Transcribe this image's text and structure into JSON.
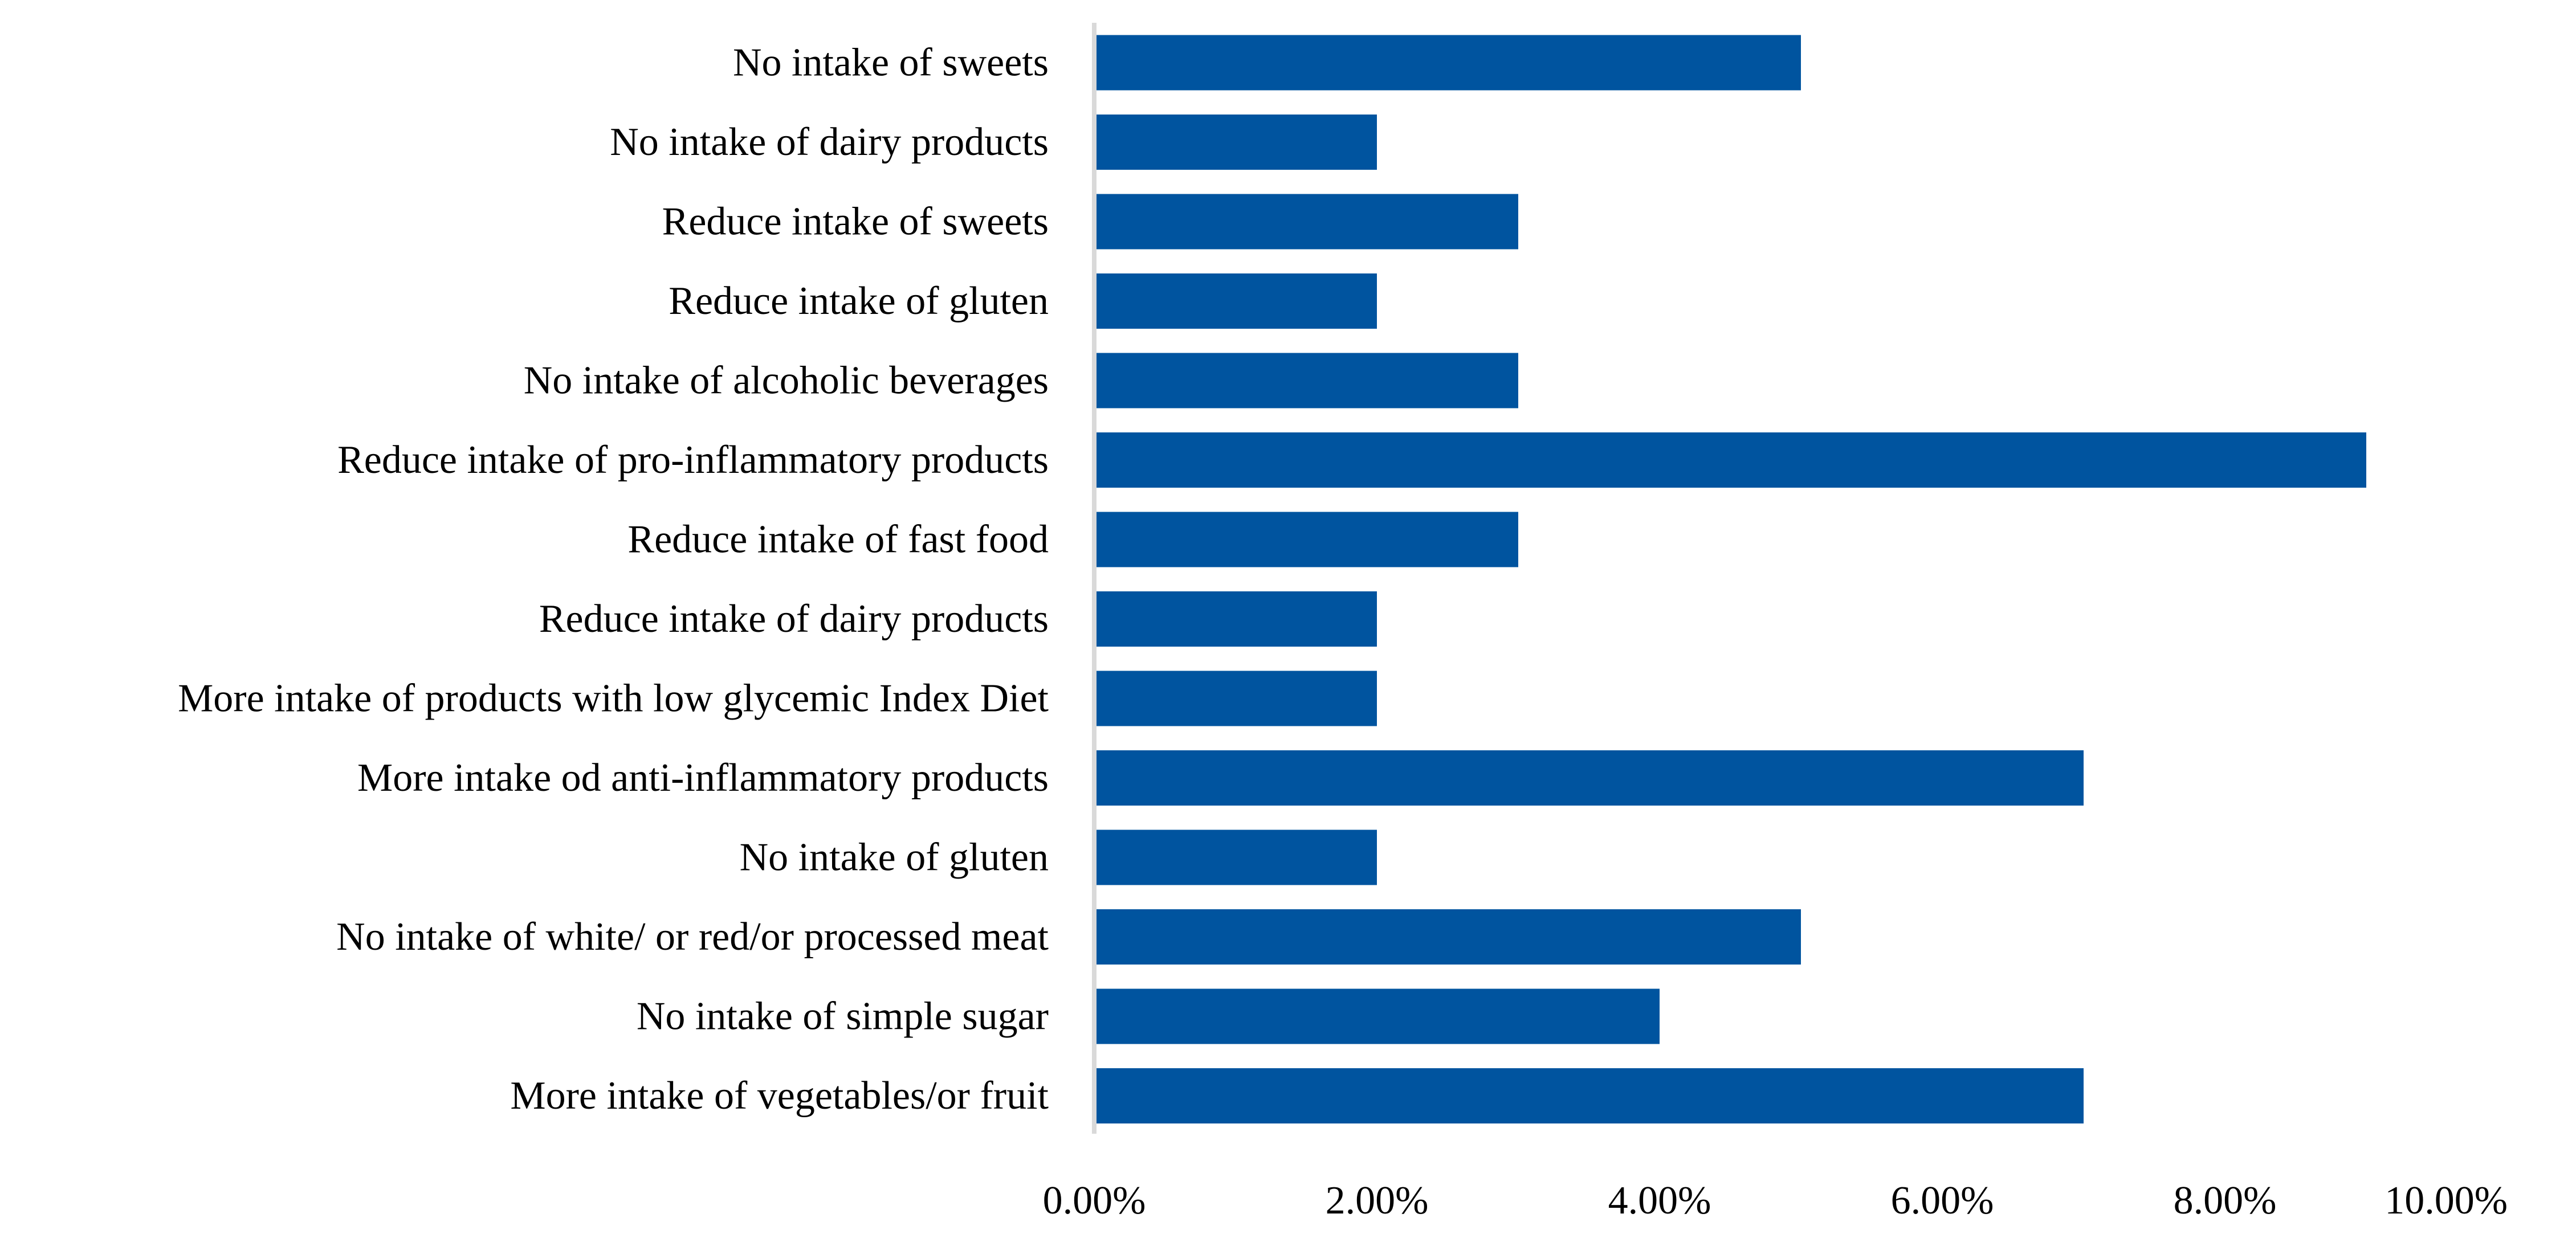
{
  "chart_data": {
    "type": "bar",
    "orientation": "horizontal",
    "title": "",
    "xlabel": "",
    "ylabel": "",
    "categories": [
      "No intake of sweets",
      "No intake of dairy products",
      "Reduce intake of sweets",
      "Reduce intake of gluten",
      "No intake of alcoholic beverages",
      "Reduce intake of pro-inflammatory products",
      "Reduce intake of fast food",
      "Reduce intake of dairy products",
      "More intake of products with low glycemic Index Diet",
      "More intake od anti-inflammatory products",
      "No intake  of gluten",
      "No intake of white/ or red/or processed meat",
      "No intake  of simple sugar",
      "More intake of vegetables/or fruit"
    ],
    "values": [
      5,
      2,
      3,
      2,
      3,
      9,
      3,
      2,
      2,
      7,
      2,
      5,
      4,
      7
    ],
    "value_unit": "percent",
    "xlim": [
      0,
      10
    ],
    "xticks": [
      "0.00%",
      "2.00%",
      "4.00%",
      "6.00%",
      "8.00%",
      "10.00%"
    ],
    "grid": false,
    "legend": "none",
    "bar_color": "#00549f",
    "axis_color": "#d9d9d9"
  }
}
